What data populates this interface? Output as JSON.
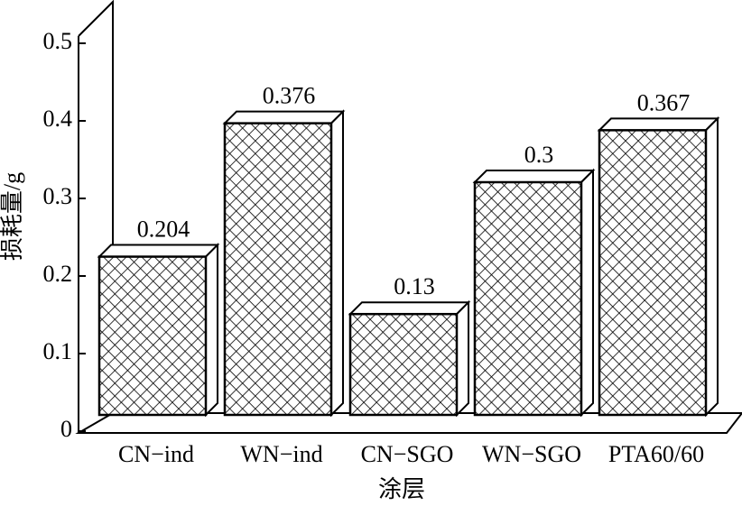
{
  "chart_data": {
    "type": "bar3d",
    "xlabel": "涂层",
    "ylabel": "损耗量/g",
    "categories": [
      "CN−ind",
      "WN−ind",
      "CN−SGO",
      "WN−SGO",
      "PTA60/60"
    ],
    "values": [
      0.204,
      0.376,
      0.13,
      0.3,
      0.367
    ],
    "ylim": [
      0,
      0.5
    ],
    "yticks": [
      0,
      0.1,
      0.2,
      0.3,
      0.4,
      0.5
    ],
    "color": "#000000",
    "pattern": "crosshatch"
  }
}
